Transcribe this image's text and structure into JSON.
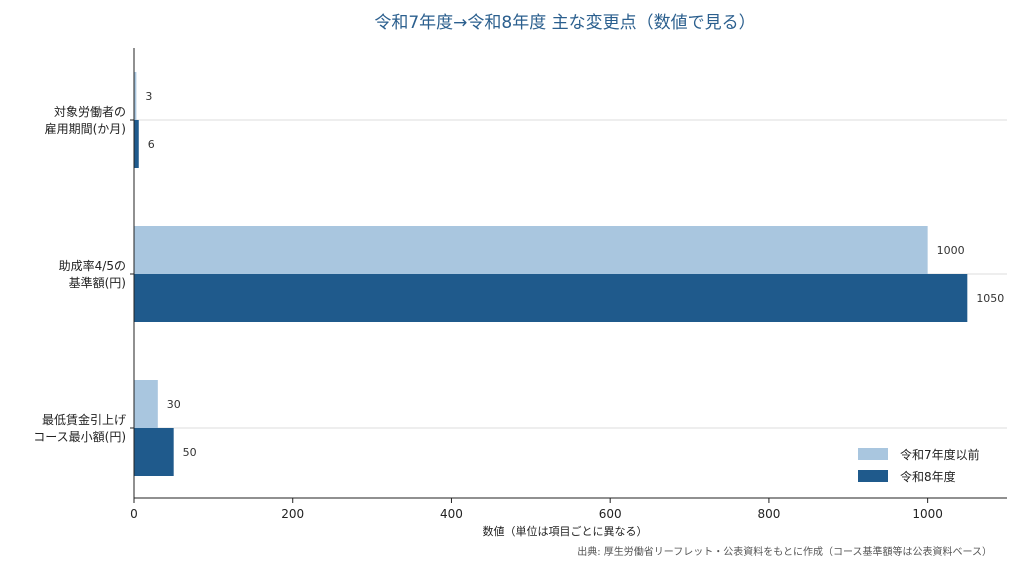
{
  "chart_data": {
    "type": "bar",
    "orientation": "horizontal",
    "title": "令和7年度→令和8年度 主な変更点（数値で見る）",
    "xlabel": "数値（単位は項目ごとに異なる）",
    "ylabel": "",
    "xlim": [
      0,
      1100
    ],
    "xticks": [
      0,
      200,
      400,
      600,
      800,
      1000
    ],
    "categories": [
      [
        "対象労働者の",
        "雇用期間(か月)"
      ],
      [
        "助成率4/5の",
        "基準額(円)"
      ],
      [
        "最低賃金引上げ",
        "コース最小額(円)"
      ]
    ],
    "series": [
      {
        "name": "令和7年度以前",
        "color": "#a9c6df",
        "values": [
          3,
          1000,
          30
        ]
      },
      {
        "name": "令和8年度",
        "color": "#1f5a8c",
        "values": [
          6,
          1050,
          50
        ]
      }
    ],
    "legend_position": "bottom-right",
    "grid": "horizontal-at-category-centers",
    "source": "出典: 厚生労働省リーフレット・公表資料をもとに作成（コース基準額等は公表資料ベース）"
  }
}
